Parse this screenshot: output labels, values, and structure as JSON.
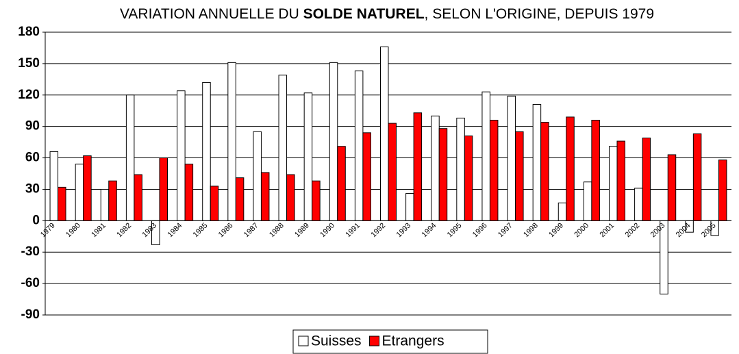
{
  "chart_data": {
    "type": "bar",
    "title": [
      "VARIATION ANNUELLE DU ",
      "SOLDE NATUREL",
      ", SELON L'ORIGINE, DEPUIS 1979"
    ],
    "categories": [
      "1979",
      "1980",
      "1981",
      "1982",
      "1983",
      "1984",
      "1985",
      "1986",
      "1987",
      "1988",
      "1989",
      "1990",
      "1991",
      "1992",
      "1993",
      "1994",
      "1995",
      "1996",
      "1997",
      "1998",
      "1999",
      "2000",
      "2001",
      "2002",
      "2003",
      "2004",
      "2005"
    ],
    "series": [
      {
        "name": "Suisses",
        "color": "#ffffff",
        "values": [
          66,
          54,
          30,
          120,
          -23,
          124,
          132,
          151,
          85,
          139,
          122,
          151,
          143,
          166,
          26,
          100,
          98,
          123,
          119,
          111,
          17,
          37,
          71,
          31,
          -70,
          -11,
          -14
        ]
      },
      {
        "name": "Etrangers",
        "color": "#ff0000",
        "values": [
          32,
          62,
          38,
          44,
          60,
          54,
          33,
          41,
          46,
          44,
          38,
          71,
          84,
          93,
          103,
          88,
          81,
          96,
          85,
          94,
          99,
          96,
          76,
          79,
          63,
          83,
          58
        ]
      }
    ],
    "ylim": [
      -90,
      180
    ],
    "yticks": [
      -90,
      -60,
      -30,
      0,
      30,
      60,
      90,
      120,
      150,
      180
    ],
    "grid": true,
    "legend": "bottom"
  }
}
